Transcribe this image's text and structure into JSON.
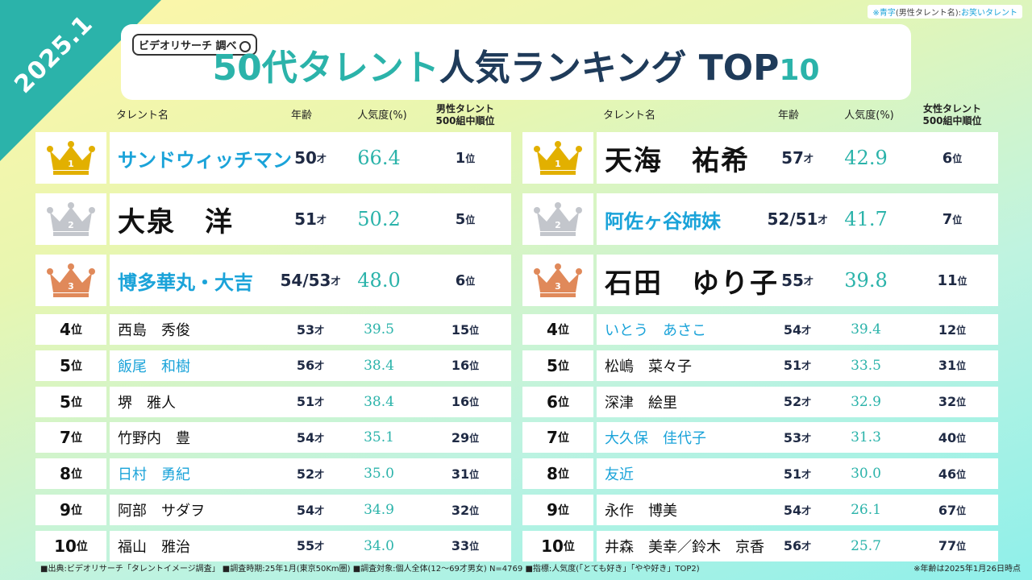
{
  "corner_date": "2025.1",
  "legend_note": {
    "prefix": "※青字",
    "paren": "(男性タレント名)",
    "colon": ":",
    "label": "お笑いタレント"
  },
  "logo_text": "ビデオリサーチ 調べ",
  "title": {
    "main": "50代タレント",
    "rest": "人気ランキング TOP",
    "num": "10"
  },
  "headers": {
    "name": "タレント名",
    "age": "年齢",
    "pop": "人気度(%)",
    "male_rank": "男性タレント\n500組中順位",
    "female_rank": "女性タレント\n500組中順位"
  },
  "units": {
    "rank": "位",
    "age": "才"
  },
  "colors": {
    "gold": "#e2b000",
    "silver": "#c3c6cc",
    "bronze": "#e0895a",
    "accent": "#2bb3aa",
    "comedian_blue": "#1aa3d9"
  },
  "male": [
    {
      "rank": "1",
      "name": "サンドウィッチマン",
      "blue": true,
      "age": "50",
      "pop": "66.4",
      "overall": "1"
    },
    {
      "rank": "2",
      "name": "大泉　洋",
      "blue": false,
      "age": "51",
      "pop": "50.2",
      "overall": "5"
    },
    {
      "rank": "3",
      "name": "博多華丸・大吉",
      "blue": true,
      "age": "54/53",
      "pop": "48.0",
      "overall": "6"
    },
    {
      "rank": "4",
      "name": "西島　秀俊",
      "blue": false,
      "age": "53",
      "pop": "39.5",
      "overall": "15"
    },
    {
      "rank": "5",
      "name": "飯尾　和樹",
      "blue": true,
      "age": "56",
      "pop": "38.4",
      "overall": "16"
    },
    {
      "rank": "5",
      "name": "堺　雅人",
      "blue": false,
      "age": "51",
      "pop": "38.4",
      "overall": "16"
    },
    {
      "rank": "7",
      "name": "竹野内　豊",
      "blue": false,
      "age": "54",
      "pop": "35.1",
      "overall": "29"
    },
    {
      "rank": "8",
      "name": "日村　勇紀",
      "blue": true,
      "age": "52",
      "pop": "35.0",
      "overall": "31"
    },
    {
      "rank": "9",
      "name": "阿部　サダヲ",
      "blue": false,
      "age": "54",
      "pop": "34.9",
      "overall": "32"
    },
    {
      "rank": "10",
      "name": "福山　雅治",
      "blue": false,
      "age": "55",
      "pop": "34.0",
      "overall": "33"
    }
  ],
  "female": [
    {
      "rank": "1",
      "name": "天海　祐希",
      "blue": false,
      "age": "57",
      "pop": "42.9",
      "overall": "6"
    },
    {
      "rank": "2",
      "name": "阿佐ヶ谷姉妹",
      "blue": true,
      "age": "52/51",
      "pop": "41.7",
      "overall": "7"
    },
    {
      "rank": "3",
      "name": "石田　ゆり子",
      "blue": false,
      "age": "55",
      "pop": "39.8",
      "overall": "11"
    },
    {
      "rank": "4",
      "name": "いとう　あさこ",
      "blue": true,
      "age": "54",
      "pop": "39.4",
      "overall": "12"
    },
    {
      "rank": "5",
      "name": "松嶋　菜々子",
      "blue": false,
      "age": "51",
      "pop": "33.5",
      "overall": "31"
    },
    {
      "rank": "6",
      "name": "深津　絵里",
      "blue": false,
      "age": "52",
      "pop": "32.9",
      "overall": "32"
    },
    {
      "rank": "7",
      "name": "大久保　佳代子",
      "blue": true,
      "age": "53",
      "pop": "31.3",
      "overall": "40"
    },
    {
      "rank": "8",
      "name": "友近",
      "blue": true,
      "age": "51",
      "pop": "30.0",
      "overall": "46"
    },
    {
      "rank": "9",
      "name": "永作　博美",
      "blue": false,
      "age": "54",
      "pop": "26.1",
      "overall": "67"
    },
    {
      "rank": "10",
      "name": "井森　美幸／鈴木　京香",
      "blue": false,
      "age": "56",
      "pop": "25.7",
      "overall": "77"
    }
  ],
  "footer": "■出典:ビデオリサーチ「タレントイメージ調査」 ■調査時期:25年1月(東京50Km圏) ■調査対象:個人全体(12～69才男女) N=4769 ■指標:人気度(「とても好き」「やや好き」TOP2)",
  "footnote": "※年齢は2025年1月26日時点"
}
